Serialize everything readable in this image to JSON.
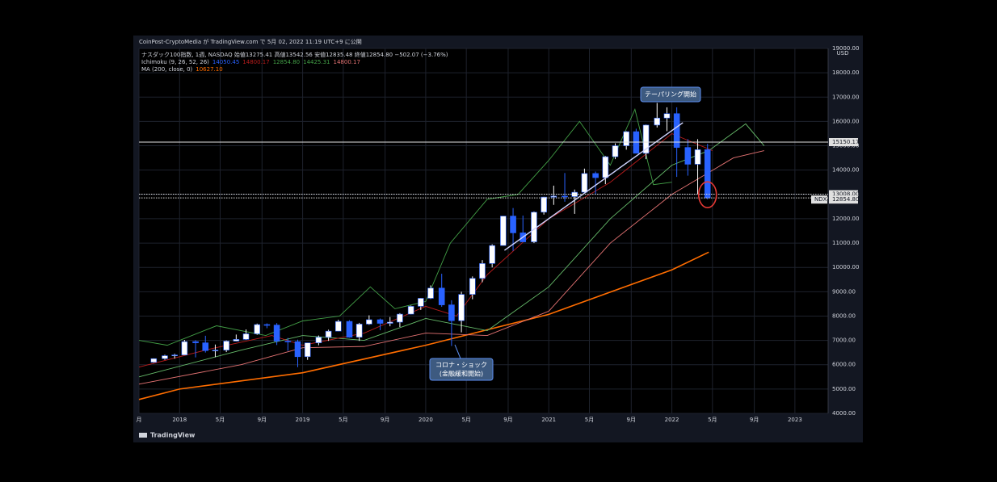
{
  "chart_data": {
    "type": "candlestick",
    "header": "CoinPost-CryptoMedia が TradingView.com で 5月 02, 2022 11:19 UTC+9 に公開",
    "legend": [
      {
        "text": "ナスダック100指数, 1週, NASDAQ  始値13275.41  高値13542.56  安値12835.48  終値12854.80  −502.07 (−3.76%)",
        "values": []
      },
      {
        "text": "Ichimoku (9, 26, 52, 26)",
        "values": [
          {
            "text": "14050.45",
            "color": "#2962ff"
          },
          {
            "text": "14800.17",
            "color": "#b71c1c"
          },
          {
            "text": "12854.80",
            "color": "#43a047"
          },
          {
            "text": "14425.31",
            "color": "#43a047"
          },
          {
            "text": "14800.17",
            "color": "#e57373"
          }
        ]
      },
      {
        "text": "MA (200, close, 0)",
        "values": [
          {
            "text": "10627.10",
            "color": "#ff6d00"
          }
        ]
      }
    ],
    "currency": "USD",
    "footer": "TradingView",
    "up_color": "#ffffff",
    "down_color": "#2962ff",
    "x": [
      2017.79,
      2017.88,
      2017.96,
      2018.04,
      2018.13,
      2018.21,
      2018.29,
      2018.38,
      2018.46,
      2018.54,
      2018.63,
      2018.71,
      2018.79,
      2018.88,
      2018.96,
      2019.04,
      2019.13,
      2019.21,
      2019.29,
      2019.38,
      2019.46,
      2019.54,
      2019.63,
      2019.71,
      2019.79,
      2019.88,
      2019.96,
      2020.04,
      2020.13,
      2020.21,
      2020.29,
      2020.38,
      2020.46,
      2020.54,
      2020.63,
      2020.71,
      2020.79,
      2020.88,
      2020.96,
      2021.04,
      2021.13,
      2021.21,
      2021.29,
      2021.38,
      2021.46,
      2021.54,
      2021.63,
      2021.71,
      2021.79,
      2021.88,
      2021.96,
      2022.04,
      2022.13,
      2022.21,
      2022.29
    ],
    "open": [
      6100,
      6250,
      6370,
      6400,
      6950,
      6900,
      6580,
      6600,
      6970,
      7040,
      7270,
      7650,
      7630,
      6970,
      6950,
      6330,
      6900,
      7130,
      7380,
      7780,
      7130,
      7670,
      7850,
      7700,
      7750,
      8080,
      8400,
      8730,
      9150,
      8460,
      7810,
      8890,
      9550,
      10160,
      10900,
      12110,
      11420,
      11050,
      12270,
      12890,
      12930,
      12910,
      13090,
      13860,
      13690,
      14550,
      15000,
      15580,
      14690,
      15850,
      16140,
      16320,
      14930,
      14240,
      14840
    ],
    "high": [
      6260,
      6410,
      6450,
      7020,
      7010,
      7190,
      6830,
      7000,
      7240,
      7450,
      7690,
      7700,
      7710,
      7100,
      7030,
      6900,
      7200,
      7440,
      7850,
      7830,
      7720,
      8030,
      7900,
      7960,
      8120,
      8430,
      8740,
      9260,
      9740,
      8650,
      9000,
      9630,
      10300,
      10950,
      12110,
      12440,
      12130,
      12300,
      12900,
      13360,
      13880,
      13200,
      14060,
      13940,
      14580,
      15100,
      15600,
      15700,
      15870,
      16760,
      16580,
      16580,
      15270,
      15270,
      15080
    ],
    "low": [
      6080,
      6200,
      6250,
      6400,
      6300,
      6500,
      6310,
      6520,
      6960,
      7020,
      7230,
      7500,
      6810,
      6570,
      5900,
      6200,
      6800,
      6980,
      7370,
      7110,
      6980,
      7640,
      7420,
      7580,
      7550,
      8070,
      8250,
      8700,
      8380,
      6770,
      7330,
      8690,
      9390,
      10000,
      10900,
      10680,
      11050,
      11000,
      12170,
      12570,
      12700,
      12200,
      13070,
      12990,
      13420,
      14450,
      14840,
      14690,
      14450,
      15750,
      15600,
      13720,
      13770,
      13020,
      12800
    ],
    "close": [
      6250,
      6370,
      6400,
      6950,
      6900,
      6580,
      6600,
      6970,
      7040,
      7270,
      7650,
      7630,
      6970,
      6950,
      6330,
      6900,
      7130,
      7380,
      7780,
      7130,
      7670,
      7850,
      7700,
      7750,
      8080,
      8400,
      8730,
      9150,
      8460,
      7810,
      8890,
      9550,
      10160,
      10900,
      12110,
      11420,
      11050,
      12270,
      12890,
      12930,
      12910,
      13090,
      13860,
      13690,
      14550,
      15000,
      15580,
      14690,
      15850,
      16140,
      16320,
      14930,
      14240,
      14840,
      12855
    ],
    "lines": [
      {
        "color": "#ff6d00",
        "x": [
          2017.67,
          2018,
          2019,
          2020,
          2021,
          2022,
          2022.3
        ],
        "values": [
          4570,
          5000,
          5670,
          6800,
          8070,
          9900,
          10627
        ]
      },
      {
        "color": "#e57373",
        "x": [
          2017.67,
          2018.5,
          2019.0,
          2019.5,
          2020.0,
          2020.5,
          2021.0,
          2021.5,
          2022.0,
          2022.5,
          2022.75
        ],
        "values": [
          5200,
          6000,
          6700,
          6750,
          7300,
          7200,
          8200,
          11000,
          13000,
          14500,
          14800
        ]
      },
      {
        "color": "#66bb6a",
        "x": [
          2017.67,
          2018.5,
          2019.0,
          2019.5,
          2020.0,
          2020.5,
          2021.0,
          2021.5,
          2022.0,
          2022.3,
          2022.6,
          2022.75
        ],
        "values": [
          5500,
          6600,
          7200,
          7000,
          7900,
          7400,
          9200,
          12000,
          14200,
          14800,
          15900,
          15000
        ]
      },
      {
        "color": "#b71c1c",
        "x": [
          2017.67,
          2018.25,
          2018.75,
          2019.0,
          2019.5,
          2020.0,
          2020.25,
          2020.5,
          2021.0,
          2021.5,
          2022.0,
          2022.33
        ],
        "values": [
          5900,
          6650,
          7200,
          6800,
          7300,
          8400,
          8000,
          9700,
          12000,
          13500,
          15500,
          14800
        ]
      },
      {
        "color": "#43a047",
        "x": [
          2017.67,
          2017.9,
          2018.3,
          2018.7,
          2019.0,
          2019.3,
          2019.55,
          2019.75,
          2020.0,
          2020.2,
          2020.5,
          2020.75,
          2021.0,
          2021.25,
          2021.5,
          2021.7,
          2021.85,
          2022.0
        ],
        "values": [
          7000,
          6800,
          7600,
          7200,
          7800,
          8000,
          9200,
          8300,
          8600,
          11000,
          12800,
          13000,
          14400,
          16000,
          14200,
          16500,
          13400,
          13500
        ]
      }
    ],
    "trendline": {
      "color": "#d0d4ff",
      "x": [
        2020.64,
        2022.09
      ],
      "values": [
        10700,
        15950
      ]
    },
    "hlines": [
      {
        "value": 15150.17,
        "label": "15150.17",
        "style": "solid"
      },
      {
        "value": 13008,
        "label": "13008.00",
        "style": "dotted"
      },
      {
        "value": 12854.8,
        "label": "12854.80",
        "style": "dotted",
        "tag": "NDX"
      }
    ],
    "annotations": [
      "テーパリング開始",
      "コロナ・ショック",
      "(金融緩和開始)"
    ],
    "xlim": [
      2017.67,
      2023.27
    ],
    "xticks": [
      {
        "value": 2017.67,
        "label": "月"
      },
      2018,
      {
        "value": 2018.33,
        "label": "5月"
      },
      {
        "value": 2018.67,
        "label": "9月"
      },
      2019,
      {
        "value": 2019.33,
        "label": "5月"
      },
      {
        "value": 2019.67,
        "label": "9月"
      },
      2020,
      {
        "value": 2020.33,
        "label": "5月"
      },
      {
        "value": 2020.67,
        "label": "9月"
      },
      2021,
      {
        "value": 2021.33,
        "label": "5月"
      },
      {
        "value": 2021.67,
        "label": "9月"
      },
      2022,
      {
        "value": 2022.33,
        "label": "5月"
      },
      {
        "value": 2022.67,
        "label": "9月"
      },
      2023
    ],
    "ylim": [
      4000,
      19000
    ],
    "yticks": [
      {
        "value": 4000,
        "label": "4000.00"
      },
      {
        "value": 5000,
        "label": "5000.00"
      },
      {
        "value": 6000,
        "label": "6000.00"
      },
      {
        "value": 7000,
        "label": "7000.00"
      },
      {
        "value": 8000,
        "label": "8000.00"
      },
      {
        "value": 9000,
        "label": "9000.00"
      },
      {
        "value": 10000,
        "label": "10000.00"
      },
      {
        "value": 11000,
        "label": "11000.00"
      },
      {
        "value": 12000,
        "label": "12000.00"
      },
      {
        "value": 13000,
        "label": "13000.00"
      },
      {
        "value": 14000,
        "label": "14000.00"
      },
      {
        "value": 15000,
        "label": "15000.00"
      },
      {
        "value": 16000,
        "label": "16000.00"
      },
      {
        "value": 17000,
        "label": "17000.00"
      },
      {
        "value": 18000,
        "label": "18000.00"
      },
      {
        "value": 19000,
        "label": "19000.00"
      }
    ],
    "grid": true
  }
}
